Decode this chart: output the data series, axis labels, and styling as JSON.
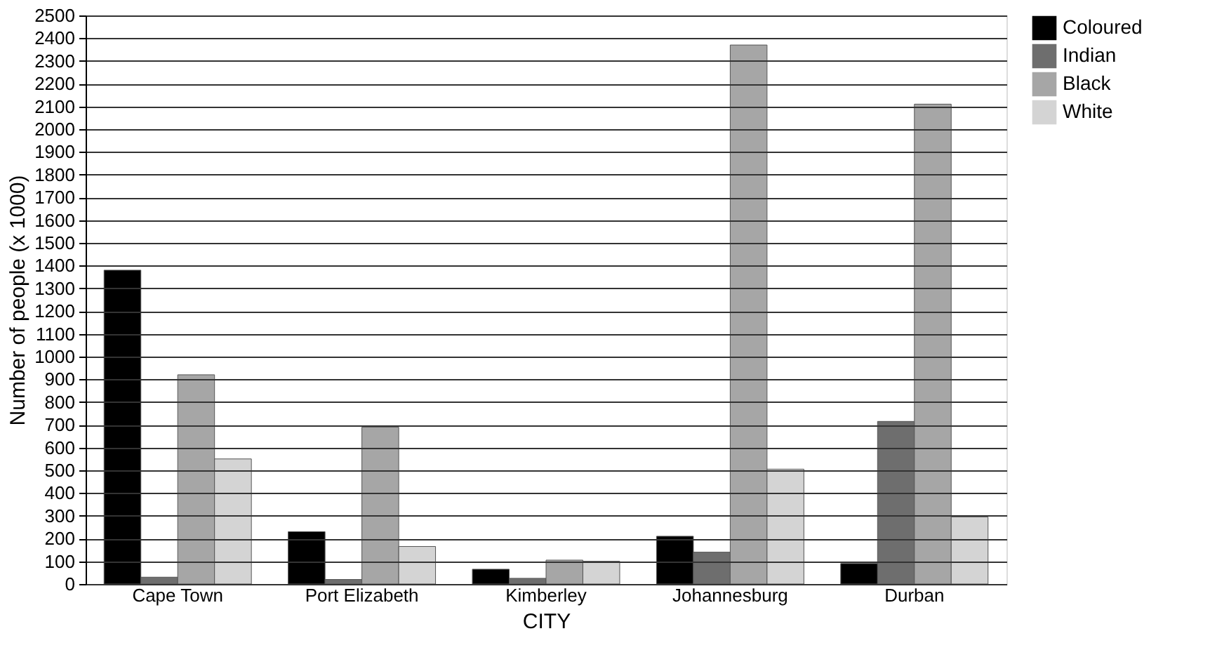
{
  "chart_data": {
    "type": "bar",
    "xlabel": "CITY",
    "ylabel": "Number of people (x 1000)",
    "categories": [
      "Cape Town",
      "Port Elizabeth",
      "Kimberley",
      "Johannesburg",
      "Durban"
    ],
    "series": [
      {
        "name": "Coloured",
        "color": "#000000",
        "values": [
          1380,
          230,
          65,
          210,
          90
        ]
      },
      {
        "name": "Indian",
        "color": "#6e6e6e",
        "values": [
          30,
          20,
          25,
          140,
          715
        ]
      },
      {
        "name": "Black",
        "color": "#a6a6a6",
        "values": [
          920,
          690,
          105,
          2370,
          2110
        ]
      },
      {
        "name": "White",
        "color": "#d4d4d4",
        "values": [
          550,
          165,
          100,
          505,
          295
        ]
      }
    ],
    "ylim": [
      0,
      2500
    ],
    "yticks": [
      0,
      100,
      200,
      300,
      400,
      500,
      600,
      700,
      800,
      900,
      1000,
      1100,
      1200,
      1300,
      1400,
      1500,
      1600,
      1700,
      1800,
      1900,
      2000,
      2100,
      2200,
      2300,
      2400,
      2500
    ],
    "grid": "y",
    "legend": "right"
  }
}
